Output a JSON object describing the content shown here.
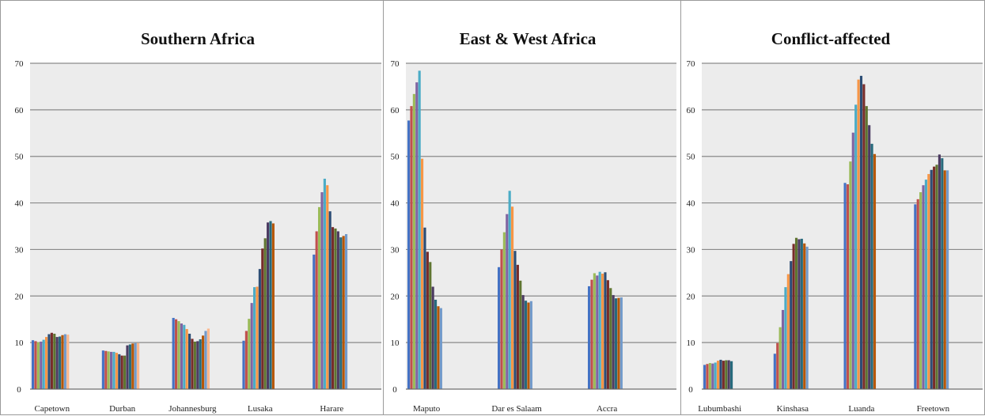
{
  "palette": [
    "#4472c4",
    "#c0504d",
    "#9bbb59",
    "#8064a2",
    "#4bacc6",
    "#f79646",
    "#2c4d75",
    "#772c2a",
    "#5f7530",
    "#4d3b62",
    "#276a7c",
    "#b65708",
    "#729aca",
    "#fbb88e",
    "#c3d69b"
  ],
  "chart_data": [
    {
      "type": "bar",
      "title": "Southern Africa",
      "ylim": [
        0,
        70
      ],
      "yticks": [
        0,
        10,
        20,
        30,
        40,
        50,
        60,
        70
      ],
      "grid": true,
      "categories": [
        "Capetown",
        "Durban",
        "Johannesburg",
        "Lusaka",
        "Harare"
      ],
      "groups": [
        [
          10.5,
          10.3,
          10.1,
          10.2,
          10.6,
          11.2,
          11.8,
          12.1,
          11.9,
          11.2,
          11.3,
          11.6,
          11.8,
          11.7
        ],
        [
          8.3,
          8.2,
          8.1,
          8.0,
          8.0,
          7.8,
          7.5,
          7.2,
          7.2,
          9.4,
          9.6,
          9.8,
          9.9,
          9.9
        ],
        [
          15.3,
          15.0,
          14.6,
          14.1,
          13.8,
          12.9,
          11.9,
          10.8,
          10.2,
          10.3,
          10.7,
          11.5,
          12.5,
          13.0
        ],
        [
          10.4,
          12.5,
          15.1,
          18.5,
          21.9,
          22.0,
          25.8,
          30.2,
          32.4,
          35.8,
          36.1,
          35.6
        ],
        [
          28.9,
          33.9,
          39.1,
          42.3,
          45.2,
          43.8,
          38.2,
          34.8,
          34.5,
          33.9,
          32.6,
          32.9,
          33.3
        ]
      ]
    },
    {
      "type": "bar",
      "title": "East & West Africa",
      "ylim": [
        0,
        70
      ],
      "yticks": [
        0,
        10,
        20,
        30,
        40,
        50,
        60,
        70
      ],
      "grid": true,
      "categories": [
        "Maputo",
        "Dar es Salaam",
        "Accra"
      ],
      "groups": [
        [
          57.7,
          60.8,
          63.4,
          65.9,
          68.4,
          49.5,
          34.7,
          29.5,
          27.3,
          22.0,
          19.2,
          17.8,
          17.4
        ],
        [
          26.2,
          30.0,
          33.7,
          37.6,
          42.6,
          39.2,
          29.7,
          26.7,
          23.3,
          20.2,
          19.0,
          18.6,
          18.9
        ],
        [
          22.1,
          23.5,
          24.9,
          24.4,
          25.2,
          24.8,
          25.1,
          23.4,
          21.7,
          20.2,
          19.5,
          19.6,
          19.7
        ]
      ]
    },
    {
      "type": "bar",
      "title": "Conflict-affected",
      "ylim": [
        0,
        70
      ],
      "yticks": [
        0,
        10,
        20,
        30,
        40,
        50,
        60,
        70
      ],
      "grid": true,
      "categories": [
        "Lubumbashi",
        "Kinshasa",
        "Luanda",
        "Freetown"
      ],
      "groups": [
        [
          5.2,
          5.4,
          5.6,
          5.5,
          5.7,
          6.1,
          6.3,
          6.1,
          6.2,
          6.2,
          6.0
        ],
        [
          7.6,
          9.9,
          13.3,
          17.0,
          21.9,
          24.7,
          27.5,
          31.2,
          32.5,
          32.2,
          32.3,
          31.3,
          30.6
        ],
        [
          44.3,
          44.0,
          48.9,
          55.1,
          61.1,
          66.5,
          67.3,
          65.5,
          60.8,
          56.7,
          52.7,
          50.5
        ],
        [
          39.7,
          40.8,
          42.3,
          43.8,
          45.0,
          46.2,
          47.1,
          47.8,
          48.2,
          50.4,
          49.6,
          47.0,
          47.0
        ]
      ]
    }
  ]
}
